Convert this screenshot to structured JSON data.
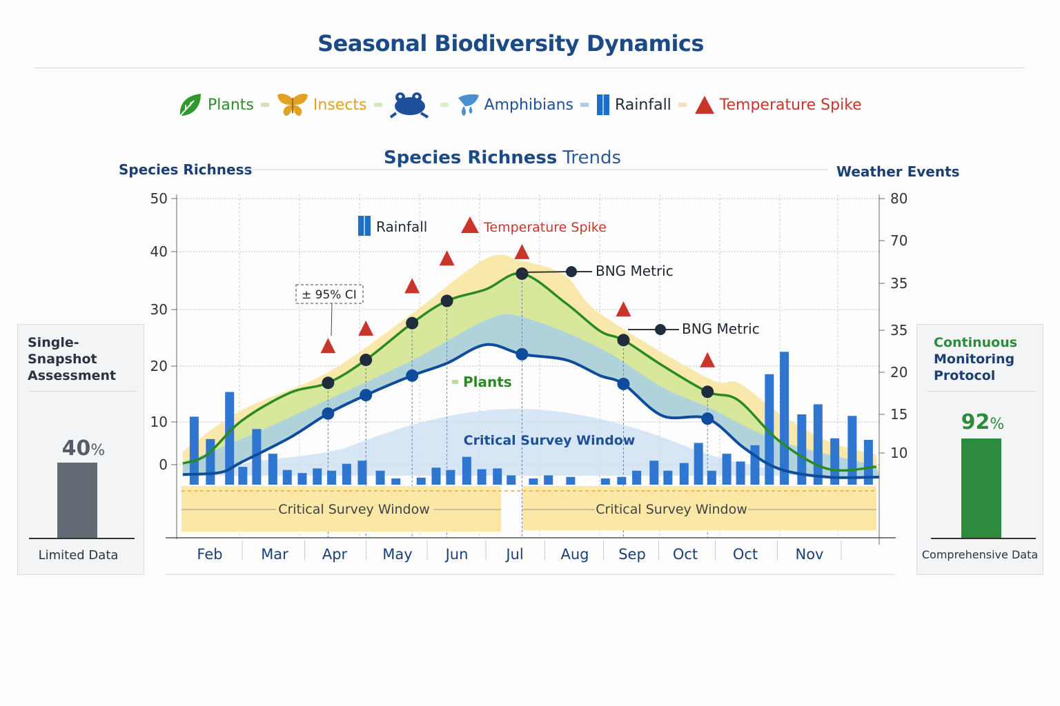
{
  "title": "Seasonal Biodiversity Dynamics",
  "legend": [
    {
      "label": "Plants",
      "icon": "leaf-icon",
      "color": "#2e8b2e"
    },
    {
      "label": "Insects",
      "icon": "butterfly-icon",
      "color": "#e0a21f"
    },
    {
      "label": "",
      "icon": "frog-icon",
      "color": "#1e4f9c"
    },
    {
      "label": "Amphibians",
      "icon": "water-drop-icon",
      "color": "#1e4f9c"
    },
    {
      "label": "Rainfall",
      "icon": "rainfall-bar-icon",
      "color": "#222a36"
    },
    {
      "label": "Temperature Spike",
      "icon": "warning-triangle-icon",
      "color": "#c8352b"
    }
  ],
  "colors": {
    "title": "#1c4a86",
    "plants": "#2a8a22",
    "amphibians": "#0f4d9c",
    "rainfall": "#2f76d0",
    "temperature": "#c8352b",
    "ci_band": "#f8e6a2",
    "plants_band": "#d3e79a",
    "amphibian_band": "#a9cfe6",
    "survey_window": "#fbe8a6"
  },
  "left_panel": {
    "title": "Single-Snapshot Assessment",
    "value": 40,
    "value_label": "40",
    "unit": "%",
    "caption": "Limited Data",
    "color": "#626b74"
  },
  "right_panel": {
    "title_line1": "Continuous",
    "title_line2": "Monitoring",
    "title_line3": "Protocol",
    "value": 92,
    "value_label": "92",
    "unit": "%",
    "caption": "Comprehensive Data",
    "color": "#2e8b3e"
  },
  "chart_data": {
    "type": "line",
    "title": "Species Richness Trends",
    "title_bold": "Species Richness",
    "title_rest": "Trends",
    "ylabel": "Species Richness",
    "y2label": "Weather Events",
    "ylim": [
      0,
      50
    ],
    "yticks": [
      "50",
      "40",
      "30",
      "20",
      "10",
      "0"
    ],
    "y2ticks": [
      "80",
      "70",
      "35",
      "35",
      "20",
      "15",
      "10"
    ],
    "categories": [
      "Feb",
      "Mar",
      "Apr",
      "May",
      "Jun",
      "Jul",
      "Aug",
      "Sep",
      "Oct",
      "Oct",
      "Nov"
    ],
    "grid": true,
    "inner_legend": [
      {
        "label": "Rainfall",
        "color": "#222a36"
      },
      {
        "label": "Temperature Spike",
        "color": "#c8352b"
      }
    ],
    "series": [
      {
        "name": "Plants",
        "color": "#2a8a22",
        "x": [
          -0.45,
          -0.05,
          0.53,
          1.33,
          1.97,
          2.6,
          3.37,
          3.95,
          4.6,
          5.2,
          5.93,
          6.5,
          6.89,
          7.54,
          8.29,
          8.8,
          9.49,
          10.3,
          11.1
        ],
        "y": [
          0.3,
          2.3,
          10.2,
          15.2,
          17.0,
          21.1,
          27.6,
          31.5,
          33.5,
          36.2,
          31.1,
          26.2,
          24.6,
          20.1,
          15.4,
          13.9,
          5.5,
          -1.0,
          -0.5
        ],
        "markers": [
          [
            1.97,
            17.0
          ],
          [
            2.6,
            21.1
          ],
          [
            3.37,
            27.6
          ],
          [
            3.95,
            31.5
          ],
          [
            5.2,
            36.2
          ],
          [
            6.89,
            24.6
          ],
          [
            8.29,
            15.4
          ]
        ]
      },
      {
        "name": "Amphibians",
        "color": "#0f4d9c",
        "x": [
          -0.45,
          0.18,
          0.53,
          1.33,
          1.97,
          2.6,
          3.37,
          3.95,
          4.6,
          5.2,
          5.93,
          6.5,
          6.89,
          7.54,
          8.29,
          8.9,
          9.49,
          10.3,
          11.15
        ],
        "y": [
          -2.3,
          -1.8,
          0.6,
          6.3,
          11.5,
          14.8,
          18.3,
          20.5,
          23.8,
          22.1,
          21.1,
          18.3,
          16.8,
          11.1,
          10.6,
          3.9,
          -1.0,
          -2.9,
          -2.9
        ],
        "markers": [
          [
            1.97,
            11.5
          ],
          [
            2.6,
            14.8
          ],
          [
            3.37,
            18.3
          ],
          [
            5.2,
            22.1
          ],
          [
            6.89,
            16.8
          ],
          [
            8.29,
            10.6
          ]
        ]
      }
    ],
    "confidence_band": {
      "label": "± 95% CI",
      "x": [
        -0.45,
        0.53,
        1.97,
        3.37,
        4.6,
        5.2,
        5.93,
        6.5,
        8.29,
        8.8,
        9.49,
        10.3,
        11.1
      ],
      "upper": [
        3.1,
        12.1,
        18.9,
        29.3,
        38.8,
        38.4,
        35.8,
        29.3,
        17.9,
        17.0,
        11.5,
        5.5,
        2.3
      ]
    },
    "amphibian_band": {
      "x": [
        -0.45,
        0.53,
        1.97,
        3.37,
        4.6,
        5.2,
        6.5,
        7.54,
        8.29,
        9.49,
        11.1
      ],
      "upper": [
        0.5,
        6.0,
        14.0,
        21.0,
        28.1,
        28.7,
        23.2,
        16.2,
        12.7,
        5.5,
        -0.2
      ]
    },
    "rainfall": {
      "name": "Rainfall",
      "color": "#2f76d0",
      "x": [
        -0.26,
        0.01,
        0.33,
        0.55,
        0.78,
        1.05,
        1.29,
        1.54,
        1.79,
        2.03,
        2.28,
        2.54,
        2.84,
        3.1,
        3.52,
        3.77,
        4.01,
        4.28,
        4.53,
        4.79,
        5.02,
        5.39,
        5.64,
        6.01,
        6.59,
        6.86,
        7.11,
        7.4,
        7.63,
        7.9,
        8.14,
        8.36,
        8.61,
        8.84,
        9.08,
        9.32,
        9.57,
        9.86,
        10.13,
        10.41,
        10.7,
        10.97
      ],
      "values": [
        14.7,
        11.8,
        17.9,
        8.2,
        13.1,
        9.9,
        7.8,
        7.4,
        8.0,
        7.7,
        8.6,
        9.0,
        7.7,
        6.7,
        6.8,
        8.1,
        7.8,
        9.5,
        7.9,
        8.0,
        7.1,
        6.7,
        7.1,
        6.9,
        6.7,
        6.9,
        7.7,
        9.0,
        7.7,
        8.7,
        11.3,
        7.7,
        9.9,
        8.9,
        11.0,
        20.2,
        23.1,
        15.0,
        16.3,
        11.9,
        14.8,
        11.7
      ]
    },
    "temperature_spikes": {
      "name": "Temperature Spike",
      "x": [
        1.97,
        2.6,
        3.37,
        3.95,
        5.2,
        6.89,
        8.29
      ],
      "y": [
        23.5,
        26.6,
        34.0,
        38.8,
        39.9,
        30.0,
        21.0
      ]
    },
    "annotations": [
      {
        "text": "BNG Metric",
        "x": 5.2,
        "y": 36.2
      },
      {
        "text": "BNG Metric",
        "x": 6.89,
        "y": 24.6
      },
      {
        "text": "Plants"
      },
      {
        "text": "Critical Survey Window"
      },
      {
        "text": "± 95% CI"
      }
    ],
    "survey_windows": [
      {
        "label": "Critical Survey Window"
      },
      {
        "label": "Critical Survey Window"
      }
    ]
  }
}
